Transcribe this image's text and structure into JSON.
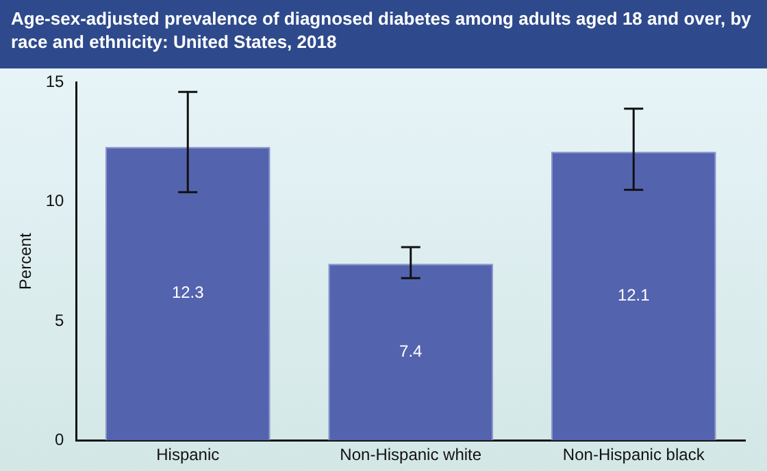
{
  "chart_data": {
    "type": "bar",
    "title": "Age-sex-adjusted prevalence of diagnosed diabetes among adults aged 18 and over, by race and ethnicity: United States, 2018",
    "ylabel": "Percent",
    "categories": [
      "Hispanic",
      "Non-Hispanic white",
      "Non-Hispanic black"
    ],
    "values": [
      12.3,
      7.4,
      12.1
    ],
    "color": "#5463ae",
    "errors": [
      [
        10.4,
        14.6
      ],
      [
        6.8,
        8.1
      ],
      [
        10.5,
        13.9
      ]
    ],
    "ylim": [
      0,
      15
    ],
    "yticks": [
      0,
      5,
      10,
      15
    ],
    "grid": false,
    "legend": false,
    "data_labels": true
  }
}
